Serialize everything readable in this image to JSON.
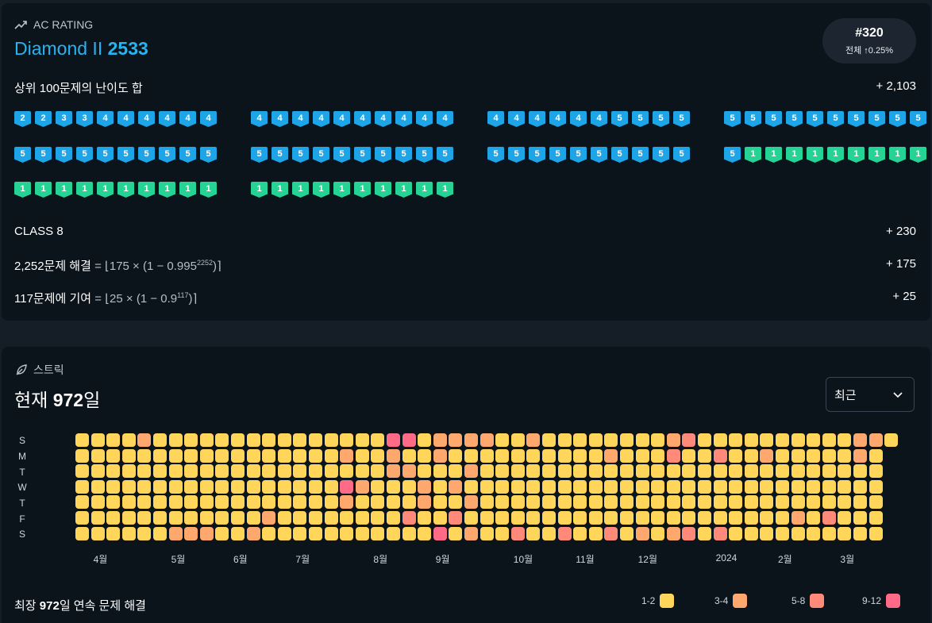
{
  "rating": {
    "header_label": "AC RATING",
    "tier_name": "Diamond II",
    "rating_value": "2533",
    "rank": "#320",
    "rank_sub": "전체 ↑0.25%",
    "top100_label": "상위 100문제의 난이도 합",
    "top100_value": "+ 2,103",
    "class_label": "CLASS 8",
    "class_value": "+ 230",
    "solved_bold": "2,252문제 해결",
    "solved_formula": " = ⌊175 × (1 − 0.995",
    "solved_exp": "2252",
    "solved_close": ")⌉",
    "solved_value": "+ 175",
    "contrib_bold": "117문제에 기여",
    "contrib_formula": " = ⌊25 × (1 − 0.9",
    "contrib_exp": "117",
    "contrib_close": ")⌉",
    "contrib_value": "+ 25",
    "badges": [
      [
        "2",
        "2",
        "3",
        "3",
        "4",
        "4",
        "4",
        "4",
        "4",
        "4",
        "4",
        "4",
        "4",
        "4",
        "4",
        "4",
        "4",
        "4",
        "4",
        "4",
        "4",
        "4",
        "4",
        "4",
        "4",
        "4",
        "5",
        "5",
        "5",
        "5",
        "5",
        "5",
        "5",
        "5",
        "5",
        "5",
        "5",
        "5",
        "5",
        "5"
      ],
      [
        "5",
        "5",
        "5",
        "5",
        "5",
        "5",
        "5",
        "5",
        "5",
        "5",
        "5",
        "5",
        "5",
        "5",
        "5",
        "5",
        "5",
        "5",
        "5",
        "5",
        "5",
        "5",
        "5",
        "5",
        "5",
        "5",
        "5",
        "5",
        "5",
        "5",
        "5",
        "1",
        "1",
        "1",
        "1",
        "1",
        "1",
        "1",
        "1",
        "1"
      ],
      [
        "1",
        "1",
        "1",
        "1",
        "1",
        "1",
        "1",
        "1",
        "1",
        "1",
        "1",
        "1",
        "1",
        "1",
        "1",
        "1",
        "1",
        "1",
        "1",
        "1"
      ]
    ],
    "colors": {
      "diamond": "#1ea5e8",
      "ruby": "#25d495",
      "accent": "#27b4f2"
    }
  },
  "streak": {
    "header_label": "스트릭",
    "current_prefix": "현재 ",
    "current_days": "972",
    "current_suffix": "일",
    "select_value": "최근",
    "day_labels": [
      "S",
      "M",
      "T",
      "W",
      "T",
      "F",
      "S"
    ],
    "months": [
      {
        "label": "4월",
        "week": 1
      },
      {
        "label": "5월",
        "week": 6
      },
      {
        "label": "6월",
        "week": 10
      },
      {
        "label": "7월",
        "week": 14
      },
      {
        "label": "8월",
        "week": 19
      },
      {
        "label": "9월",
        "week": 23
      },
      {
        "label": "10월",
        "week": 28
      },
      {
        "label": "11월",
        "week": 32
      },
      {
        "label": "12월",
        "week": 36
      },
      {
        "label": "2024",
        "week": 41
      },
      {
        "label": "2월",
        "week": 45
      },
      {
        "label": "3월",
        "week": 49
      }
    ],
    "longest_prefix": "최장 ",
    "longest_days": "972",
    "longest_suffix": "일 연속 문제 해결",
    "legend": [
      {
        "label": "1-2",
        "color": "#ffd65a"
      },
      {
        "label": "3-4",
        "color": "#ffa86e"
      },
      {
        "label": "5-8",
        "color": "#ff8a7a"
      },
      {
        "label": "9-12",
        "color": "#ff6b87"
      }
    ],
    "weeks": [
      [
        1,
        1,
        1,
        1,
        1,
        1,
        1
      ],
      [
        1,
        1,
        1,
        1,
        1,
        1,
        1
      ],
      [
        1,
        1,
        1,
        1,
        1,
        1,
        1
      ],
      [
        1,
        1,
        1,
        1,
        1,
        1,
        1
      ],
      [
        2,
        1,
        1,
        1,
        1,
        1,
        1
      ],
      [
        1,
        1,
        1,
        1,
        1,
        1,
        1
      ],
      [
        1,
        1,
        1,
        1,
        1,
        1,
        2
      ],
      [
        1,
        1,
        1,
        1,
        1,
        1,
        2
      ],
      [
        1,
        1,
        1,
        1,
        1,
        1,
        2
      ],
      [
        1,
        1,
        1,
        1,
        1,
        1,
        1
      ],
      [
        1,
        1,
        1,
        1,
        1,
        1,
        1
      ],
      [
        1,
        1,
        1,
        1,
        1,
        1,
        2
      ],
      [
        1,
        1,
        1,
        1,
        1,
        2,
        1
      ],
      [
        1,
        1,
        1,
        1,
        1,
        1,
        1
      ],
      [
        1,
        1,
        1,
        1,
        1,
        1,
        1
      ],
      [
        1,
        1,
        1,
        1,
        1,
        1,
        1
      ],
      [
        1,
        1,
        1,
        1,
        1,
        1,
        1
      ],
      [
        1,
        2,
        1,
        4,
        2,
        1,
        1
      ],
      [
        1,
        1,
        1,
        2,
        1,
        1,
        1
      ],
      [
        1,
        1,
        1,
        1,
        1,
        1,
        1
      ],
      [
        4,
        2,
        2,
        1,
        1,
        1,
        1
      ],
      [
        4,
        1,
        2,
        1,
        1,
        3,
        1
      ],
      [
        1,
        1,
        1,
        2,
        2,
        1,
        1
      ],
      [
        2,
        2,
        1,
        1,
        1,
        1,
        4
      ],
      [
        2,
        1,
        1,
        2,
        1,
        3,
        1
      ],
      [
        2,
        1,
        2,
        1,
        2,
        1,
        2
      ],
      [
        2,
        1,
        1,
        1,
        1,
        1,
        1
      ],
      [
        1,
        1,
        1,
        1,
        1,
        1,
        1
      ],
      [
        1,
        1,
        1,
        1,
        1,
        1,
        3
      ],
      [
        2,
        1,
        1,
        1,
        1,
        1,
        1
      ],
      [
        1,
        1,
        1,
        1,
        1,
        1,
        1
      ],
      [
        1,
        1,
        1,
        1,
        1,
        1,
        3
      ],
      [
        1,
        1,
        1,
        1,
        1,
        1,
        1
      ],
      [
        1,
        1,
        1,
        1,
        1,
        1,
        1
      ],
      [
        1,
        2,
        1,
        1,
        1,
        1,
        3
      ],
      [
        1,
        1,
        1,
        1,
        1,
        1,
        1
      ],
      [
        1,
        1,
        1,
        1,
        1,
        1,
        2
      ],
      [
        1,
        1,
        1,
        1,
        1,
        1,
        1
      ],
      [
        2,
        3,
        1,
        1,
        1,
        1,
        2
      ],
      [
        3,
        1,
        1,
        1,
        1,
        1,
        3
      ],
      [
        1,
        1,
        1,
        1,
        1,
        1,
        1
      ],
      [
        1,
        3,
        1,
        1,
        1,
        1,
        3
      ],
      [
        1,
        1,
        1,
        1,
        1,
        1,
        1
      ],
      [
        1,
        1,
        1,
        1,
        1,
        1,
        1
      ],
      [
        1,
        2,
        1,
        1,
        1,
        1,
        1
      ],
      [
        1,
        1,
        1,
        1,
        1,
        1,
        1
      ],
      [
        1,
        1,
        1,
        1,
        1,
        2,
        1
      ],
      [
        1,
        1,
        1,
        1,
        1,
        1,
        1
      ],
      [
        1,
        1,
        1,
        1,
        1,
        3,
        1
      ],
      [
        1,
        1,
        1,
        1,
        1,
        1,
        1
      ],
      [
        2,
        2,
        1,
        1,
        1,
        1,
        1
      ],
      [
        2,
        1,
        1,
        1,
        1,
        1,
        1
      ],
      [
        1
      ]
    ]
  }
}
